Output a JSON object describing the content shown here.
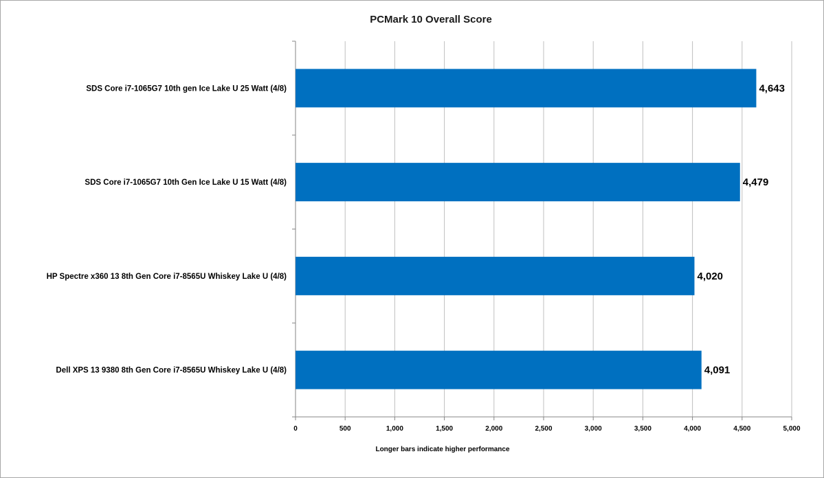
{
  "chart_data": {
    "type": "bar",
    "orientation": "horizontal",
    "title": "PCMark 10 Overall Score",
    "xlabel": "Longer bars indicate higher performance",
    "ylabel": "",
    "categories": [
      "SDS Core i7-1065G7 10th gen Ice Lake U 25 Watt (4/8)",
      "SDS Core i7-1065G7 10th Gen Ice Lake U 15 Watt (4/8)",
      "HP Spectre x360 13 8th Gen Core i7-8565U Whiskey Lake U (4/8)",
      "Dell XPS 13 9380 8th Gen Core i7-8565U Whiskey Lake U (4/8)"
    ],
    "values": [
      4643,
      4479,
      4020,
      4091
    ],
    "data_labels": [
      "4,643",
      "4,479",
      "4,020",
      "4,091"
    ],
    "xlim": [
      0,
      5000
    ],
    "ticks": [
      0,
      500,
      1000,
      1500,
      2000,
      2500,
      3000,
      3500,
      4000,
      4500,
      5000
    ],
    "tick_labels": [
      "0",
      "500",
      "1,000",
      "1,500",
      "2,000",
      "2,500",
      "3,000",
      "3,500",
      "4,000",
      "4,500",
      "5,000"
    ],
    "grid": "vertical",
    "legend": "none",
    "bar_color": "#0070c0",
    "grid_color": "#bfbfbf"
  }
}
